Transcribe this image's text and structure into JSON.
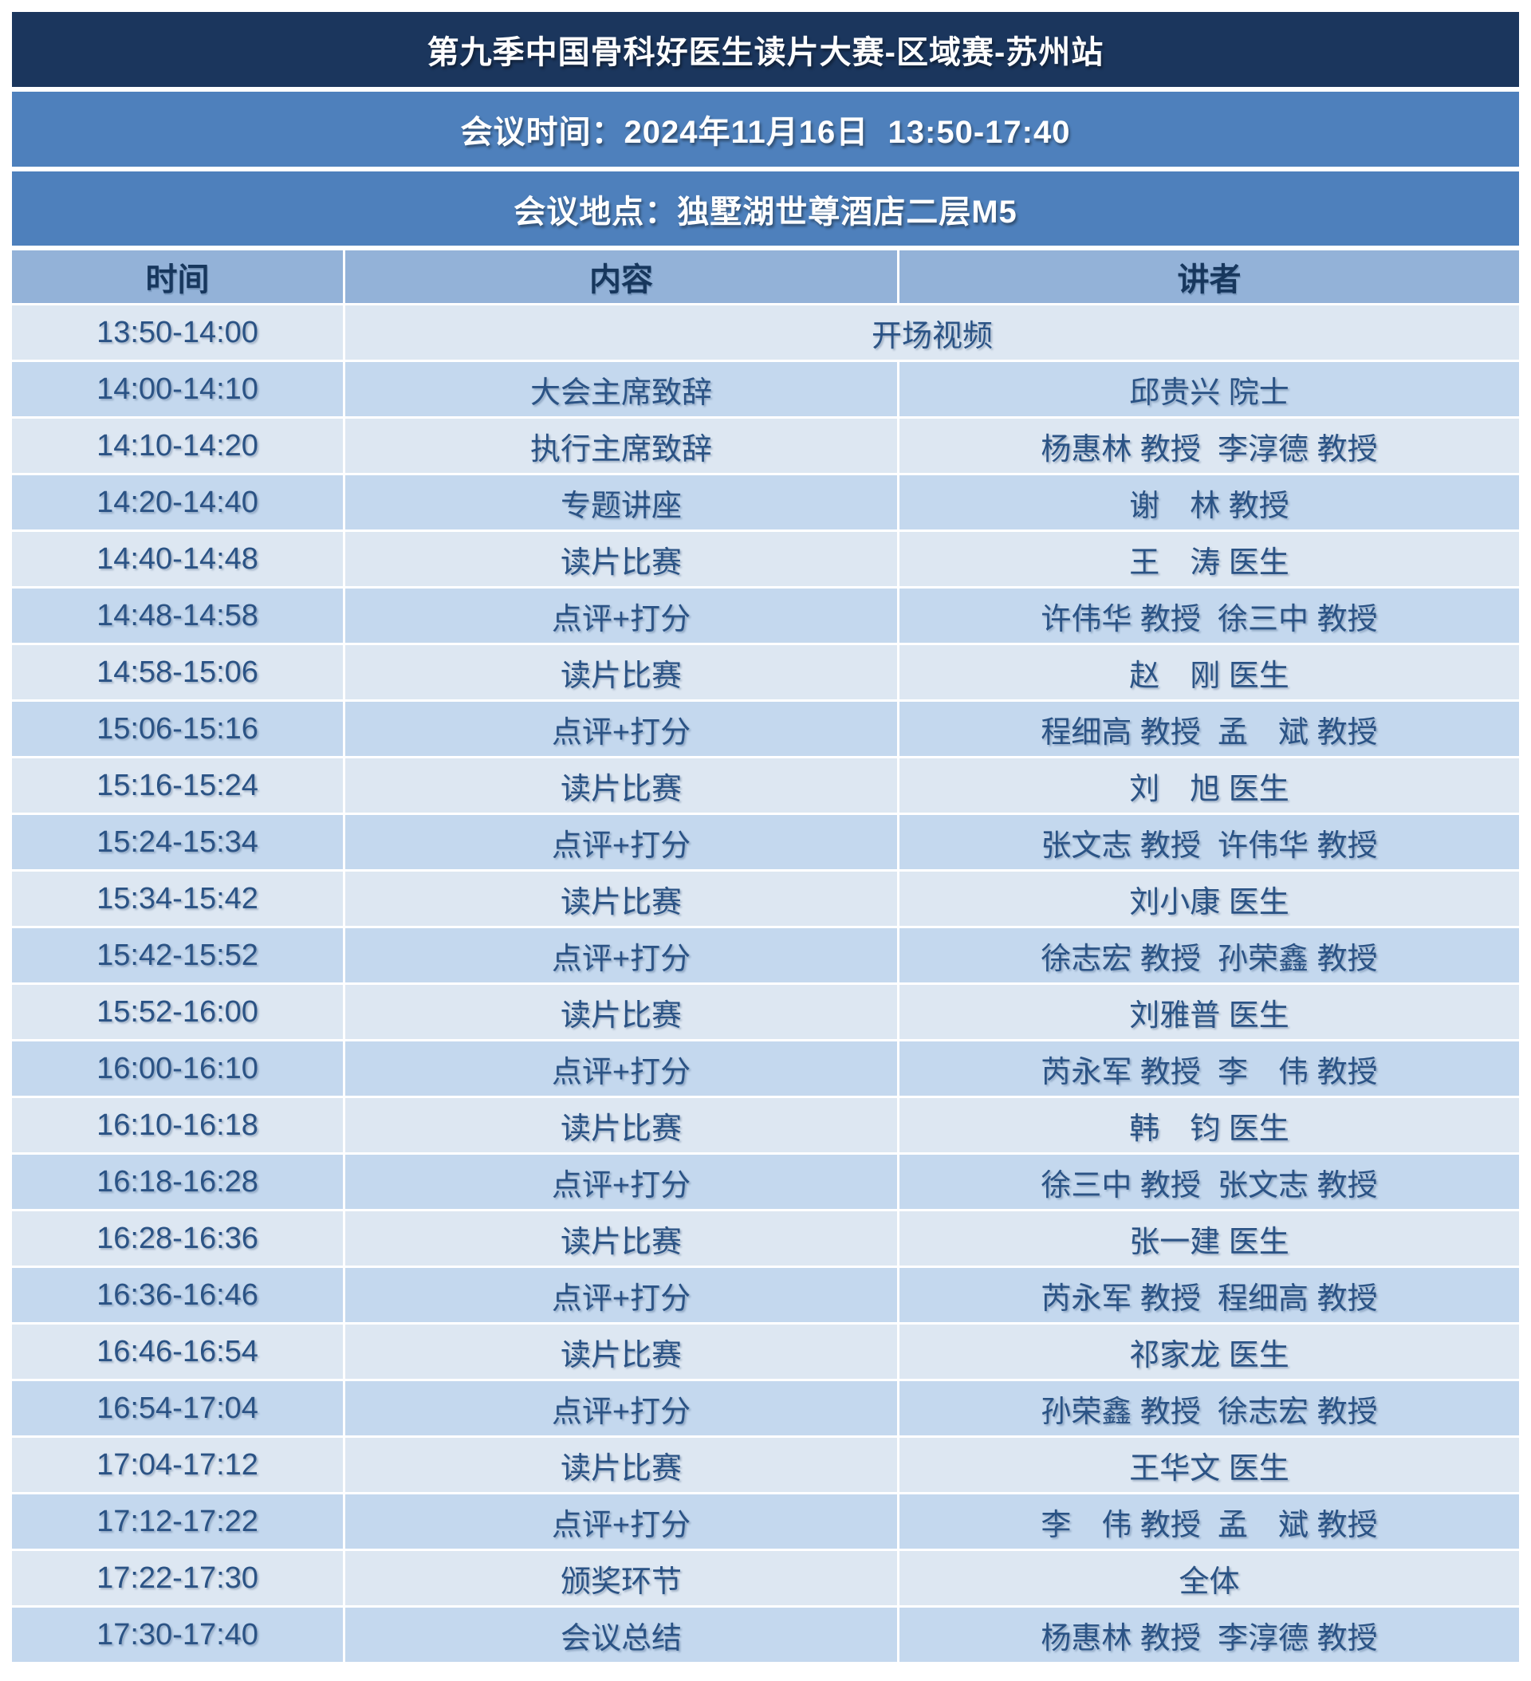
{
  "header": {
    "title": "第九季中国骨科好医生读片大赛-区域赛-苏州站",
    "meeting_time": "会议时间：2024年11月16日  13:50-17:40",
    "meeting_location": "会议地点：独墅湖世尊酒店二层M5"
  },
  "table": {
    "columns": [
      "时间",
      "内容",
      "讲者"
    ],
    "rows": [
      {
        "time": "13:50-14:00",
        "content": "开场视频",
        "speaker": null
      },
      {
        "time": "14:00-14:10",
        "content": "大会主席致辞",
        "speaker": "邱贵兴 院士"
      },
      {
        "time": "14:10-14:20",
        "content": "执行主席致辞",
        "speaker": "杨惠林 教授  李淳德 教授"
      },
      {
        "time": "14:20-14:40",
        "content": "专题讲座",
        "speaker": "谢　林 教授"
      },
      {
        "time": "14:40-14:48",
        "content": "读片比赛",
        "speaker": "王　涛 医生"
      },
      {
        "time": "14:48-14:58",
        "content": "点评+打分",
        "speaker": "许伟华 教授  徐三中 教授"
      },
      {
        "time": "14:58-15:06",
        "content": "读片比赛",
        "speaker": "赵　刚 医生"
      },
      {
        "time": "15:06-15:16",
        "content": "点评+打分",
        "speaker": "程细高 教授  孟　斌 教授"
      },
      {
        "time": "15:16-15:24",
        "content": "读片比赛",
        "speaker": "刘　旭 医生"
      },
      {
        "time": "15:24-15:34",
        "content": "点评+打分",
        "speaker": "张文志 教授  许伟华 教授"
      },
      {
        "time": "15:34-15:42",
        "content": "读片比赛",
        "speaker": "刘小康 医生"
      },
      {
        "time": "15:42-15:52",
        "content": "点评+打分",
        "speaker": "徐志宏 教授  孙荣鑫 教授"
      },
      {
        "time": "15:52-16:00",
        "content": "读片比赛",
        "speaker": "刘雅普 医生"
      },
      {
        "time": "16:00-16:10",
        "content": "点评+打分",
        "speaker": "芮永军 教授  李　伟 教授"
      },
      {
        "time": "16:10-16:18",
        "content": "读片比赛",
        "speaker": "韩　钧 医生"
      },
      {
        "time": "16:18-16:28",
        "content": "点评+打分",
        "speaker": "徐三中 教授  张文志 教授"
      },
      {
        "time": "16:28-16:36",
        "content": "读片比赛",
        "speaker": "张一建 医生"
      },
      {
        "time": "16:36-16:46",
        "content": "点评+打分",
        "speaker": "芮永军 教授  程细高 教授"
      },
      {
        "time": "16:46-16:54",
        "content": "读片比赛",
        "speaker": "祁家龙 医生"
      },
      {
        "time": "16:54-17:04",
        "content": "点评+打分",
        "speaker": "孙荣鑫 教授  徐志宏 教授"
      },
      {
        "time": "17:04-17:12",
        "content": "读片比赛",
        "speaker": "王华文 医生"
      },
      {
        "time": "17:12-17:22",
        "content": "点评+打分",
        "speaker": "李　伟 教授  孟　斌 教授"
      },
      {
        "time": "17:22-17:30",
        "content": "颁奖环节",
        "speaker": "全体"
      },
      {
        "time": "17:30-17:40",
        "content": "会议总结",
        "speaker": "杨惠林 教授  李淳德 教授"
      }
    ]
  },
  "colors": {
    "title_bar_bg": "#1b365d",
    "info_bar_bg": "#4e80bc",
    "header_row_bg": "#93b2d8",
    "row_light_bg": "#dde7f2",
    "row_dark_bg": "#c4d8ee",
    "header_text": "#17375d",
    "row_text": "#2b5385",
    "bar_text": "#ffffff"
  }
}
